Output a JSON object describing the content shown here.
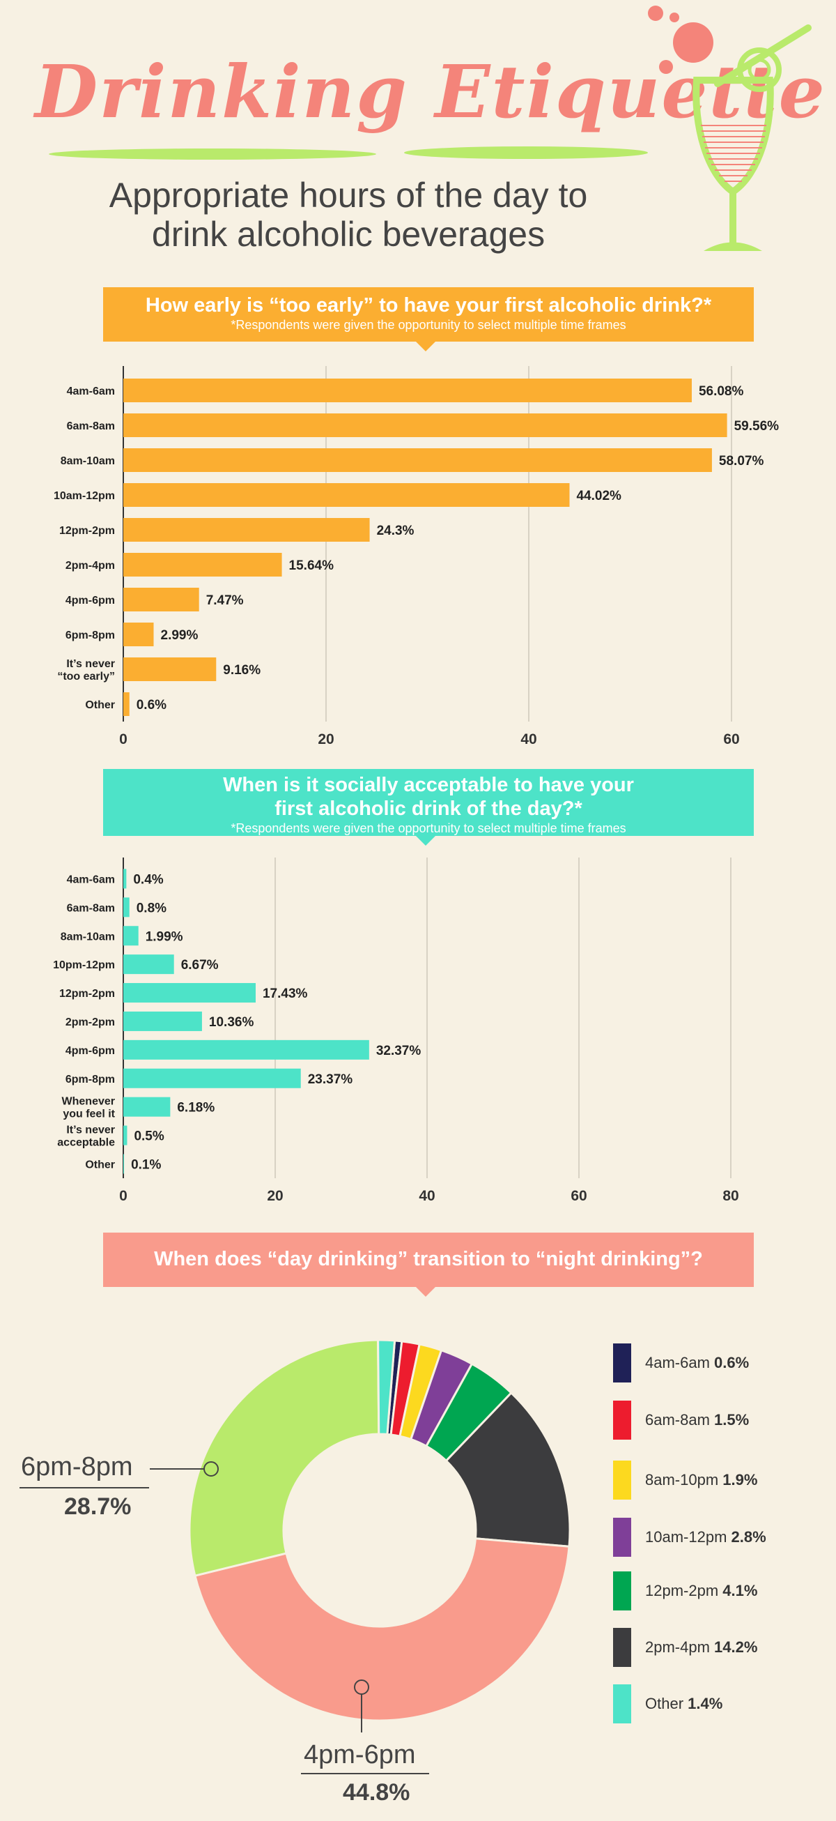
{
  "header": {
    "title": "Drinking Etiquette",
    "subtitle_line1": "Appropriate hours of the day to",
    "subtitle_line2": "drink alcoholic beverages"
  },
  "chart_data": [
    {
      "type": "bar",
      "orientation": "horizontal",
      "title": "How early is “too early” to have your first alcoholic drink?*",
      "note": "*Respondents were given the opportunity to select multiple time frames",
      "categories": [
        "4am-6am",
        "6am-8am",
        "8am-10am",
        "10am-12pm",
        "12pm-2pm",
        "2pm-4pm",
        "4pm-6pm",
        "6pm-8pm",
        "It’s never “too early”",
        "Other"
      ],
      "values": [
        56.08,
        59.56,
        58.07,
        44.02,
        24.3,
        15.64,
        7.47,
        2.99,
        9.16,
        0.6
      ],
      "value_labels": [
        "56.08%",
        "59.56%",
        "58.07%",
        "44.02%",
        "24.3%",
        "15.64%",
        "7.47%",
        "2.99%",
        "9.16%",
        "0.6%"
      ],
      "xticks": [
        0,
        20,
        40,
        60
      ],
      "xlim": [
        0,
        60
      ],
      "grid": true,
      "color": "#fbae31"
    },
    {
      "type": "bar",
      "orientation": "horizontal",
      "title_line1": "When is it socially acceptable to have your",
      "title_line2": "first alcoholic drink of the day?*",
      "note": "*Respondents were given the opportunity to select multiple time frames",
      "categories": [
        "4am-6am",
        "6am-8am",
        "8am-10am",
        "10pm-12pm",
        "12pm-2pm",
        "2pm-2pm",
        "4pm-6pm",
        "6pm-8pm",
        "Whenever you feel it",
        "It’s never acceptable",
        "Other"
      ],
      "values": [
        0.4,
        0.8,
        1.99,
        6.67,
        17.43,
        10.36,
        32.37,
        23.37,
        6.18,
        0.5,
        0.1
      ],
      "value_labels": [
        "0.4%",
        "0.8%",
        "1.99%",
        "6.67%",
        "17.43%",
        "10.36%",
        "32.37%",
        "23.37%",
        "6.18%",
        "0.5%",
        "0.1%"
      ],
      "xticks": [
        0,
        20,
        40,
        60,
        80
      ],
      "xlim": [
        0,
        80
      ],
      "grid": true,
      "color": "#4de3c8"
    },
    {
      "type": "pie",
      "donut": true,
      "title": "When does “day drinking” transition to “night drinking”?",
      "slices": [
        {
          "label": "4am-6am",
          "value": 0.6,
          "value_label": "0.6%",
          "color": "#1f2157"
        },
        {
          "label": "6am-8am",
          "value": 1.5,
          "value_label": "1.5%",
          "color": "#ed1c2e"
        },
        {
          "label": "8am-10pm",
          "value": 1.9,
          "value_label": "1.9%",
          "color": "#fcd91f"
        },
        {
          "label": "10am-12pm",
          "value": 2.8,
          "value_label": "2.8%",
          "color": "#7f3f98"
        },
        {
          "label": "12pm-2pm",
          "value": 4.1,
          "value_label": "4.1%",
          "color": "#00a651"
        },
        {
          "label": "2pm-4pm",
          "value": 14.2,
          "value_label": "14.2%",
          "color": "#3c3c3e"
        },
        {
          "label": "4pm-6pm",
          "value": 44.8,
          "value_label": "44.8%",
          "color": "#f99b8c"
        },
        {
          "label": "6pm-8pm",
          "value": 28.7,
          "value_label": "28.7%",
          "color": "#b9ea6b"
        },
        {
          "label": "Other",
          "value": 1.4,
          "value_label": "1.4%",
          "color": "#4de3c8"
        }
      ],
      "legend_placement": "right"
    }
  ],
  "colors": {
    "background": "#f7f1e3",
    "title": "#f4847a",
    "accent_green": "#b9ea6b",
    "orange": "#fbae31",
    "teal": "#4de3c8",
    "salmon": "#f99b8c"
  }
}
